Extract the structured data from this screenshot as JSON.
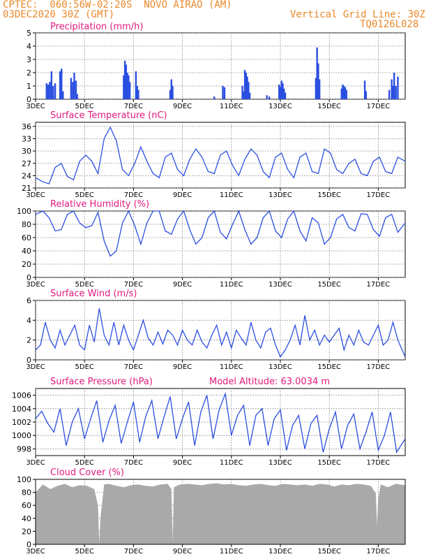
{
  "header": {
    "line1": "CPTEC:  060:56W-02:20S  NOVO AIRAO (AM)",
    "line2": "03DEC2020 30Z (GMT)",
    "grid_note": "Vertical Grid Line: 30Z",
    "code": "TQ0126L028"
  },
  "colors": {
    "header": "#e8892a",
    "title": "#e0197d",
    "series": "#2b4fe0",
    "bars": "#2b4fe0",
    "cloud": "#a9a9a9"
  },
  "x_ticks": [
    "3DEC",
    "5DEC",
    "7DEC",
    "9DEC",
    "11DEC",
    "13DEC",
    "15DEC",
    "17DEC"
  ],
  "chart_data": [
    {
      "type": "bar",
      "title": "Precipitation (mm/h)",
      "ylim": [
        0,
        5
      ],
      "yticks": [
        "0",
        "1",
        "2",
        "3",
        "4",
        "5"
      ],
      "x_range_days": [
        3,
        18.1
      ],
      "bars": [
        [
          3.45,
          1.2
        ],
        [
          3.52,
          1.1
        ],
        [
          3.58,
          1.3
        ],
        [
          3.65,
          2.1
        ],
        [
          3.72,
          1.0
        ],
        [
          3.8,
          1.2
        ],
        [
          4.0,
          2.1
        ],
        [
          4.06,
          2.3
        ],
        [
          4.12,
          0.6
        ],
        [
          4.45,
          1.6
        ],
        [
          4.52,
          1.3
        ],
        [
          4.58,
          2.0
        ],
        [
          4.65,
          1.4
        ],
        [
          4.7,
          0.4
        ],
        [
          6.6,
          1.8
        ],
        [
          6.65,
          2.9
        ],
        [
          6.7,
          2.6
        ],
        [
          6.75,
          2.0
        ],
        [
          6.8,
          1.8
        ],
        [
          6.85,
          1.3
        ],
        [
          7.1,
          2.1
        ],
        [
          7.15,
          1.0
        ],
        [
          7.2,
          0.7
        ],
        [
          8.5,
          0.7
        ],
        [
          8.55,
          1.5
        ],
        [
          8.6,
          1.0
        ],
        [
          10.3,
          0.2
        ],
        [
          10.65,
          1.0
        ],
        [
          10.72,
          0.9
        ],
        [
          11.45,
          1.0
        ],
        [
          11.5,
          0.6
        ],
        [
          11.55,
          2.2
        ],
        [
          11.6,
          2.0
        ],
        [
          11.65,
          1.7
        ],
        [
          11.7,
          1.3
        ],
        [
          11.75,
          0.5
        ],
        [
          12.45,
          0.3
        ],
        [
          12.55,
          0.2
        ],
        [
          12.95,
          1.1
        ],
        [
          13.0,
          0.9
        ],
        [
          13.05,
          1.4
        ],
        [
          13.1,
          1.2
        ],
        [
          13.15,
          0.8
        ],
        [
          13.2,
          0.5
        ],
        [
          14.45,
          1.6
        ],
        [
          14.5,
          3.9
        ],
        [
          14.55,
          2.7
        ],
        [
          14.6,
          1.5
        ],
        [
          15.5,
          0.8
        ],
        [
          15.55,
          1.1
        ],
        [
          15.6,
          1.0
        ],
        [
          15.65,
          0.9
        ],
        [
          15.7,
          0.7
        ],
        [
          16.45,
          1.4
        ],
        [
          16.5,
          0.6
        ],
        [
          17.45,
          0.7
        ],
        [
          17.55,
          1.5
        ],
        [
          17.6,
          1.0
        ],
        [
          17.65,
          2.0
        ],
        [
          17.72,
          1.0
        ],
        [
          17.8,
          1.7
        ]
      ]
    },
    {
      "type": "line",
      "title": "Surface Temperature (nC)",
      "ylim": [
        21,
        37
      ],
      "yticks": [
        "21",
        "24",
        "27",
        "30",
        "33",
        "36"
      ],
      "x_range_days": [
        3,
        18.1
      ],
      "x": [
        3.0,
        3.3,
        3.55,
        3.8,
        4.05,
        4.3,
        4.55,
        4.8,
        5.05,
        5.3,
        5.55,
        5.8,
        6.05,
        6.3,
        6.55,
        6.8,
        7.05,
        7.3,
        7.55,
        7.8,
        8.05,
        8.3,
        8.55,
        8.8,
        9.05,
        9.3,
        9.55,
        9.8,
        10.05,
        10.3,
        10.55,
        10.8,
        11.05,
        11.3,
        11.55,
        11.8,
        12.05,
        12.3,
        12.55,
        12.8,
        13.05,
        13.3,
        13.55,
        13.8,
        14.05,
        14.3,
        14.55,
        14.8,
        15.05,
        15.3,
        15.55,
        15.8,
        16.05,
        16.3,
        16.55,
        16.8,
        17.05,
        17.3,
        17.55,
        17.8,
        18.1
      ],
      "values": [
        23.5,
        22.5,
        22.0,
        26.0,
        27.0,
        23.8,
        23.0,
        27.5,
        29.0,
        27.5,
        24.5,
        33.0,
        35.8,
        32.5,
        25.5,
        24.0,
        27.0,
        31.0,
        27.5,
        24.5,
        23.5,
        28.5,
        29.5,
        25.5,
        24.0,
        28.0,
        30.5,
        28.5,
        25.0,
        24.5,
        29.0,
        30.0,
        26.5,
        24.0,
        28.0,
        30.5,
        29.0,
        25.0,
        23.5,
        28.5,
        29.5,
        25.5,
        23.5,
        28.5,
        29.5,
        25.0,
        24.5,
        30.5,
        29.5,
        25.5,
        24.5,
        27.0,
        28.0,
        24.5,
        24.0,
        27.5,
        28.5,
        25.0,
        24.5,
        28.5,
        27.5
      ]
    },
    {
      "type": "line",
      "title": "Relative Humidity (%)",
      "ylim": [
        0,
        100
      ],
      "yticks": [
        "0",
        "20",
        "40",
        "60",
        "80",
        "100"
      ],
      "x_range_days": [
        3,
        18.1
      ],
      "x": [
        3.0,
        3.3,
        3.55,
        3.8,
        4.05,
        4.3,
        4.55,
        4.8,
        5.05,
        5.3,
        5.55,
        5.8,
        6.05,
        6.3,
        6.55,
        6.8,
        7.05,
        7.3,
        7.55,
        7.8,
        8.05,
        8.3,
        8.55,
        8.8,
        9.05,
        9.3,
        9.55,
        9.8,
        10.05,
        10.3,
        10.55,
        10.8,
        11.05,
        11.3,
        11.55,
        11.8,
        12.05,
        12.3,
        12.55,
        12.8,
        13.05,
        13.3,
        13.55,
        13.8,
        14.05,
        14.3,
        14.55,
        14.8,
        15.05,
        15.3,
        15.55,
        15.8,
        16.05,
        16.3,
        16.55,
        16.8,
        17.05,
        17.3,
        17.55,
        17.8,
        18.1
      ],
      "values": [
        95,
        100,
        90,
        70,
        72,
        95,
        100,
        82,
        75,
        78,
        98,
        55,
        32,
        40,
        82,
        100,
        78,
        50,
        82,
        100,
        100,
        70,
        65,
        88,
        100,
        72,
        50,
        60,
        90,
        100,
        68,
        58,
        80,
        100,
        72,
        50,
        60,
        90,
        100,
        70,
        60,
        88,
        100,
        70,
        55,
        90,
        82,
        50,
        60,
        88,
        95,
        75,
        70,
        96,
        95,
        72,
        62,
        90,
        95,
        68,
        82
      ]
    },
    {
      "type": "line",
      "title": "Surface Wind (m/s)",
      "ylim": [
        0,
        6
      ],
      "yticks": [
        "0",
        "2",
        "4",
        "6"
      ],
      "x_range_days": [
        3,
        18.1
      ],
      "x": [
        3.0,
        3.2,
        3.4,
        3.6,
        3.8,
        4.0,
        4.2,
        4.4,
        4.6,
        4.8,
        5.0,
        5.2,
        5.4,
        5.6,
        5.8,
        6.0,
        6.2,
        6.4,
        6.6,
        6.8,
        7.0,
        7.2,
        7.4,
        7.6,
        7.8,
        8.0,
        8.2,
        8.4,
        8.6,
        8.8,
        9.0,
        9.2,
        9.4,
        9.6,
        9.8,
        10.0,
        10.2,
        10.4,
        10.6,
        10.8,
        11.0,
        11.2,
        11.4,
        11.6,
        11.8,
        12.0,
        12.2,
        12.4,
        12.6,
        12.8,
        13.0,
        13.2,
        13.4,
        13.6,
        13.8,
        14.0,
        14.2,
        14.4,
        14.6,
        14.8,
        15.0,
        15.2,
        15.4,
        15.6,
        15.8,
        16.0,
        16.2,
        16.4,
        16.6,
        16.8,
        17.0,
        17.2,
        17.4,
        17.6,
        17.8,
        18.1
      ],
      "values": [
        1.0,
        1.5,
        3.8,
        2.0,
        1.2,
        3.0,
        1.5,
        2.5,
        3.5,
        1.5,
        1.0,
        3.5,
        1.8,
        5.2,
        2.5,
        1.5,
        3.8,
        1.5,
        3.5,
        2.0,
        1.0,
        2.5,
        4.0,
        2.2,
        1.5,
        2.8,
        1.6,
        3.0,
        2.5,
        1.5,
        3.0,
        2.0,
        1.5,
        3.0,
        1.8,
        1.2,
        2.5,
        3.5,
        1.5,
        2.8,
        1.2,
        3.0,
        2.2,
        1.5,
        3.8,
        2.0,
        1.2,
        2.8,
        3.2,
        1.5,
        0.3,
        1.0,
        2.0,
        3.5,
        1.5,
        4.5,
        2.0,
        3.0,
        1.5,
        2.5,
        1.8,
        2.5,
        3.2,
        1.0,
        2.5,
        1.5,
        3.0,
        1.8,
        1.5,
        2.5,
        3.5,
        1.5,
        2.0,
        3.8,
        2.0,
        0.3
      ]
    },
    {
      "type": "line",
      "title": "Surface Pressure (hPa)",
      "annotation": "Model Altitude: 63.0034 m",
      "ylim": [
        997,
        1007
      ],
      "yticks": [
        "998",
        "1000",
        "1002",
        "1004",
        "1006"
      ],
      "x_range_days": [
        3,
        18.1
      ],
      "x": [
        3.0,
        3.25,
        3.5,
        3.75,
        4.0,
        4.25,
        4.5,
        4.75,
        5.0,
        5.25,
        5.5,
        5.75,
        6.0,
        6.25,
        6.5,
        6.75,
        7.0,
        7.25,
        7.5,
        7.75,
        8.0,
        8.25,
        8.5,
        8.75,
        9.0,
        9.25,
        9.5,
        9.75,
        10.0,
        10.25,
        10.5,
        10.75,
        11.0,
        11.25,
        11.5,
        11.75,
        12.0,
        12.25,
        12.5,
        12.75,
        13.0,
        13.25,
        13.5,
        13.75,
        14.0,
        14.25,
        14.5,
        14.75,
        15.0,
        15.25,
        15.5,
        15.75,
        16.0,
        16.25,
        16.5,
        16.75,
        17.0,
        17.25,
        17.5,
        17.75,
        18.1
      ],
      "values": [
        1002.5,
        1003.6,
        1001.8,
        1000.5,
        1004.0,
        998.5,
        1002.0,
        1004.0,
        999.5,
        1002.5,
        1005.2,
        999.0,
        1002.2,
        1004.5,
        998.8,
        1002.0,
        1005.0,
        999.0,
        1002.8,
        1005.2,
        999.5,
        1002.8,
        1005.8,
        999.5,
        1002.5,
        1005.0,
        998.5,
        1003.5,
        1006.0,
        999.5,
        1003.8,
        1006.2,
        1000.0,
        1003.0,
        1004.5,
        998.5,
        1003.0,
        1004.0,
        998.5,
        1002.5,
        1003.8,
        997.8,
        1001.5,
        1003.0,
        998.0,
        1001.8,
        1003.0,
        997.5,
        1001.0,
        1003.5,
        998.0,
        1001.5,
        1003.2,
        998.0,
        1000.5,
        1003.5,
        997.8,
        1000.0,
        1003.5,
        997.5,
        999.5
      ]
    },
    {
      "type": "area",
      "title": "Cloud Cover (%)",
      "ylim": [
        0,
        100
      ],
      "yticks": [
        "0",
        "20",
        "40",
        "60",
        "80",
        "100"
      ],
      "x_range_days": [
        3,
        18.1
      ],
      "x": [
        3.0,
        3.3,
        3.6,
        3.9,
        4.2,
        4.5,
        4.8,
        5.1,
        5.4,
        5.55,
        5.6,
        5.65,
        5.8,
        6.0,
        6.3,
        6.6,
        6.9,
        7.2,
        7.5,
        7.8,
        8.1,
        8.4,
        8.55,
        8.6,
        8.65,
        8.9,
        9.2,
        9.5,
        9.8,
        10.1,
        10.4,
        10.7,
        11.0,
        11.3,
        11.6,
        11.9,
        12.2,
        12.5,
        12.8,
        13.1,
        13.4,
        13.7,
        14.0,
        14.3,
        14.6,
        14.9,
        15.2,
        15.5,
        15.8,
        16.1,
        16.4,
        16.7,
        16.9,
        16.95,
        17.0,
        17.1,
        17.4,
        17.7,
        18.1
      ],
      "values": [
        80,
        92,
        85,
        90,
        93,
        88,
        91,
        90,
        85,
        60,
        2,
        40,
        92,
        93,
        90,
        88,
        91,
        92,
        90,
        89,
        92,
        93,
        85,
        3,
        88,
        92,
        93,
        92,
        91,
        93,
        94,
        92,
        93,
        91,
        90,
        92,
        93,
        91,
        90,
        93,
        92,
        91,
        92,
        90,
        93,
        92,
        89,
        92,
        91,
        93,
        92,
        90,
        78,
        30,
        70,
        92,
        88,
        93,
        91
      ]
    }
  ]
}
